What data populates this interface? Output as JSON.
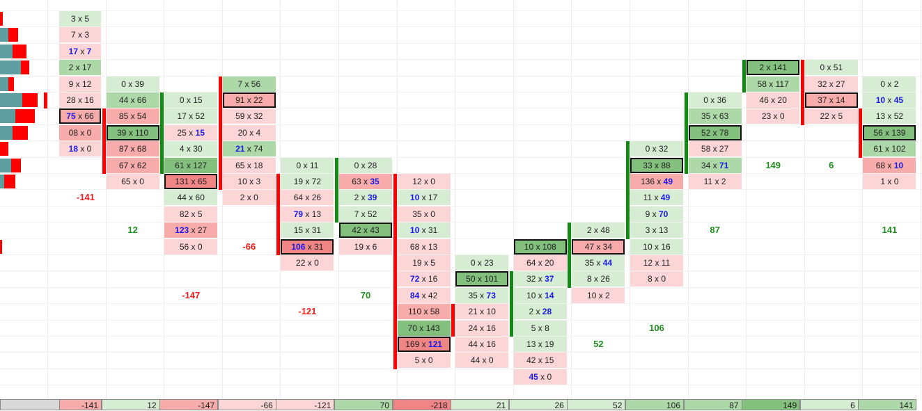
{
  "sep": " x ",
  "columns": [
    {
      "bar": {
        "color": "red",
        "from": 5,
        "to": 5
      },
      "delta": {
        "row": 11,
        "value": -141
      },
      "cells": [
        {
          "r": 0,
          "bid": 3,
          "ask": 5,
          "tone": "g1"
        },
        {
          "r": 1,
          "bid": 7,
          "ask": 3,
          "tone": "r1"
        },
        {
          "r": 2,
          "bid": 17,
          "ask": 7,
          "tone": "r1",
          "blue": "both"
        },
        {
          "r": 3,
          "bid": 2,
          "ask": 17,
          "tone": "g2"
        },
        {
          "r": 4,
          "bid": 9,
          "ask": 12,
          "tone": "r1"
        },
        {
          "r": 5,
          "bid": 28,
          "ask": 16,
          "tone": "r1"
        },
        {
          "r": 6,
          "bid": 75,
          "ask": 66,
          "tone": "r2",
          "blue": "bid",
          "box": true
        },
        {
          "r": 7,
          "bid": "08",
          "ask": 0,
          "tone": "r2"
        },
        {
          "r": 8,
          "bid": 18,
          "ask": 0,
          "tone": "r1",
          "blue": "bid"
        }
      ]
    },
    {
      "bar": {
        "color": "red",
        "from": 6,
        "to": 9
      },
      "delta": {
        "row": 13,
        "value": 12
      },
      "cells": [
        {
          "r": 4,
          "bid": 0,
          "ask": 39,
          "tone": "g1"
        },
        {
          "r": 5,
          "bid": 44,
          "ask": 66,
          "tone": "g2"
        },
        {
          "r": 6,
          "bid": 85,
          "ask": 54,
          "tone": "r2"
        },
        {
          "r": 7,
          "bid": 39,
          "ask": 110,
          "tone": "g3",
          "box": true
        },
        {
          "r": 8,
          "bid": 87,
          "ask": 68,
          "tone": "r2"
        },
        {
          "r": 9,
          "bid": 67,
          "ask": 62,
          "tone": "r2"
        },
        {
          "r": 10,
          "bid": 65,
          "ask": 0,
          "tone": "r1"
        }
      ]
    },
    {
      "bar": {
        "color": "green",
        "from": 5,
        "to": 9
      },
      "delta": {
        "row": 17,
        "value": -147
      },
      "cells": [
        {
          "r": 5,
          "bid": 0,
          "ask": 15,
          "tone": "g1"
        },
        {
          "r": 6,
          "bid": 17,
          "ask": 52,
          "tone": "g1"
        },
        {
          "r": 7,
          "bid": 25,
          "ask": 15,
          "tone": "r1",
          "blue": "ask"
        },
        {
          "r": 8,
          "bid": 4,
          "ask": 30,
          "tone": "g1"
        },
        {
          "r": 9,
          "bid": 61,
          "ask": 127,
          "tone": "g3"
        },
        {
          "r": 10,
          "bid": 131,
          "ask": 65,
          "tone": "r3",
          "box": true
        },
        {
          "r": 11,
          "bid": 44,
          "ask": 60,
          "tone": "g1"
        },
        {
          "r": 12,
          "bid": 82,
          "ask": 5,
          "tone": "r1"
        },
        {
          "r": 13,
          "bid": 123,
          "ask": 27,
          "tone": "r2",
          "blue": "bid"
        },
        {
          "r": 14,
          "bid": 56,
          "ask": 0,
          "tone": "r1"
        }
      ]
    },
    {
      "bar": {
        "color": "red",
        "from": 4,
        "to": 10
      },
      "delta": {
        "row": 14,
        "value": -66
      },
      "cells": [
        {
          "r": 4,
          "bid": 7,
          "ask": 56,
          "tone": "g2"
        },
        {
          "r": 5,
          "bid": 91,
          "ask": 22,
          "tone": "r2",
          "box": true
        },
        {
          "r": 6,
          "bid": 59,
          "ask": 32,
          "tone": "r1"
        },
        {
          "r": 7,
          "bid": 20,
          "ask": 4,
          "tone": "r1"
        },
        {
          "r": 8,
          "bid": 21,
          "ask": 74,
          "tone": "g2",
          "blue": "bid"
        },
        {
          "r": 9,
          "bid": 65,
          "ask": 18,
          "tone": "r1"
        },
        {
          "r": 10,
          "bid": 10,
          "ask": 3,
          "tone": "r1"
        },
        {
          "r": 11,
          "bid": 2,
          "ask": 0,
          "tone": "r1"
        }
      ]
    },
    {
      "bar": {
        "color": "red",
        "from": 10,
        "to": 14
      },
      "delta": {
        "row": 18,
        "value": -121
      },
      "cells": [
        {
          "r": 9,
          "bid": 0,
          "ask": 11,
          "tone": "g1"
        },
        {
          "r": 10,
          "bid": 19,
          "ask": 72,
          "tone": "g1"
        },
        {
          "r": 11,
          "bid": 64,
          "ask": 26,
          "tone": "r1"
        },
        {
          "r": 12,
          "bid": 79,
          "ask": 13,
          "tone": "r1",
          "blue": "bid"
        },
        {
          "r": 13,
          "bid": 15,
          "ask": 31,
          "tone": "g1"
        },
        {
          "r": 14,
          "bid": 106,
          "ask": 31,
          "tone": "r3",
          "blue": "bid",
          "box": true
        },
        {
          "r": 15,
          "bid": 22,
          "ask": 0,
          "tone": "r1"
        }
      ]
    },
    {
      "bar": {
        "color": "green",
        "from": 9,
        "to": 12
      },
      "delta": {
        "row": 17,
        "value": 70
      },
      "cells": [
        {
          "r": 9,
          "bid": 0,
          "ask": 28,
          "tone": "g1"
        },
        {
          "r": 10,
          "bid": 63,
          "ask": 35,
          "tone": "r2",
          "blue": "ask"
        },
        {
          "r": 11,
          "bid": 2,
          "ask": 39,
          "tone": "g1",
          "blue": "ask"
        },
        {
          "r": 12,
          "bid": 7,
          "ask": 52,
          "tone": "g1"
        },
        {
          "r": 13,
          "bid": 42,
          "ask": 43,
          "tone": "g3",
          "box": true
        },
        {
          "r": 14,
          "bid": 19,
          "ask": 6,
          "tone": "r1"
        }
      ]
    },
    {
      "bar": {
        "color": "red",
        "from": 10,
        "to": 21
      },
      "cells": [
        {
          "r": 10,
          "bid": 12,
          "ask": 0,
          "tone": "r1"
        },
        {
          "r": 11,
          "bid": 10,
          "ask": 17,
          "tone": "g1",
          "blue": "bid"
        },
        {
          "r": 12,
          "bid": 35,
          "ask": 0,
          "tone": "r1"
        },
        {
          "r": 13,
          "bid": 10,
          "ask": 31,
          "tone": "g1",
          "blue": "bid"
        },
        {
          "r": 14,
          "bid": 68,
          "ask": 13,
          "tone": "r1"
        },
        {
          "r": 15,
          "bid": 19,
          "ask": 5,
          "tone": "r1"
        },
        {
          "r": 16,
          "bid": 72,
          "ask": 16,
          "tone": "r1",
          "blue": "bid"
        },
        {
          "r": 17,
          "bid": 84,
          "ask": 42,
          "tone": "r1",
          "blue": "bid"
        },
        {
          "r": 18,
          "bid": 110,
          "ask": 58,
          "tone": "r2"
        },
        {
          "r": 19,
          "bid": 70,
          "ask": 143,
          "tone": "g3"
        },
        {
          "r": 20,
          "bid": 169,
          "ask": 121,
          "tone": "r3",
          "blue": "ask",
          "box": true
        },
        {
          "r": 21,
          "bid": 5,
          "ask": 0,
          "tone": "r1"
        }
      ]
    },
    {
      "bar": {
        "color": "red",
        "from": 18,
        "to": 19
      },
      "cells": [
        {
          "r": 15,
          "bid": 0,
          "ask": 23,
          "tone": "g1"
        },
        {
          "r": 16,
          "bid": 50,
          "ask": 101,
          "tone": "g3",
          "box": true
        },
        {
          "r": 17,
          "bid": 35,
          "ask": 73,
          "tone": "g1",
          "blue": "ask"
        },
        {
          "r": 18,
          "bid": 21,
          "ask": 10,
          "tone": "r1"
        },
        {
          "r": 19,
          "bid": 24,
          "ask": 16,
          "tone": "r1"
        },
        {
          "r": 20,
          "bid": 44,
          "ask": 16,
          "tone": "r1"
        },
        {
          "r": 21,
          "bid": 44,
          "ask": 0,
          "tone": "r1"
        }
      ]
    },
    {
      "bar": {
        "color": "green",
        "from": 16,
        "to": 19
      },
      "cells": [
        {
          "r": 14,
          "bid": 10,
          "ask": 108,
          "tone": "g3",
          "box": true
        },
        {
          "r": 15,
          "bid": 64,
          "ask": 20,
          "tone": "r1"
        },
        {
          "r": 16,
          "bid": 32,
          "ask": 37,
          "tone": "g1",
          "blue": "ask"
        },
        {
          "r": 17,
          "bid": 10,
          "ask": 14,
          "tone": "g1",
          "blue": "ask"
        },
        {
          "r": 18,
          "bid": 2,
          "ask": 28,
          "tone": "g1",
          "blue": "ask"
        },
        {
          "r": 19,
          "bid": 5,
          "ask": 8,
          "tone": "g1"
        },
        {
          "r": 20,
          "bid": 13,
          "ask": 19,
          "tone": "g1"
        },
        {
          "r": 21,
          "bid": 42,
          "ask": 15,
          "tone": "r1"
        },
        {
          "r": 22,
          "bid": 45,
          "ask": 0,
          "tone": "r1",
          "blue": "bid"
        }
      ]
    },
    {
      "bar": {
        "color": "green",
        "from": 13,
        "to": 16
      },
      "delta": {
        "row": 20,
        "value": 52
      },
      "cells": [
        {
          "r": 13,
          "bid": 2,
          "ask": 48,
          "tone": "g1"
        },
        {
          "r": 14,
          "bid": 47,
          "ask": 34,
          "tone": "r2",
          "box": true
        },
        {
          "r": 15,
          "bid": 35,
          "ask": 44,
          "tone": "g1",
          "blue": "ask"
        },
        {
          "r": 16,
          "bid": 8,
          "ask": 26,
          "tone": "g1"
        },
        {
          "r": 17,
          "bid": 10,
          "ask": 2,
          "tone": "r1"
        }
      ]
    },
    {
      "bar": {
        "color": "green",
        "from": 8,
        "to": 13
      },
      "delta": {
        "row": 19,
        "value": 106
      },
      "cells": [
        {
          "r": 8,
          "bid": 0,
          "ask": 32,
          "tone": "g1"
        },
        {
          "r": 9,
          "bid": 33,
          "ask": 88,
          "tone": "g3",
          "box": true
        },
        {
          "r": 10,
          "bid": 136,
          "ask": 49,
          "tone": "r2",
          "blue": "ask"
        },
        {
          "r": 11,
          "bid": 11,
          "ask": 49,
          "tone": "g1",
          "blue": "ask"
        },
        {
          "r": 12,
          "bid": 9,
          "ask": 70,
          "tone": "g1",
          "blue": "ask"
        },
        {
          "r": 13,
          "bid": 3,
          "ask": 13,
          "tone": "g1"
        },
        {
          "r": 14,
          "bid": 10,
          "ask": 16,
          "tone": "g1"
        },
        {
          "r": 15,
          "bid": 12,
          "ask": 11,
          "tone": "r1"
        },
        {
          "r": 16,
          "bid": 8,
          "ask": 0,
          "tone": "r1"
        }
      ]
    },
    {
      "bar": {
        "color": "green",
        "from": 5,
        "to": 9
      },
      "delta": {
        "row": 13,
        "value": 87
      },
      "cells": [
        {
          "r": 5,
          "bid": 0,
          "ask": 36,
          "tone": "g1"
        },
        {
          "r": 6,
          "bid": 35,
          "ask": 63,
          "tone": "g2"
        },
        {
          "r": 7,
          "bid": 52,
          "ask": 78,
          "tone": "g3",
          "box": true
        },
        {
          "r": 8,
          "bid": 58,
          "ask": 27,
          "tone": "r1"
        },
        {
          "r": 9,
          "bid": 34,
          "ask": 71,
          "tone": "g2",
          "blue": "ask"
        },
        {
          "r": 10,
          "bid": 11,
          "ask": 2,
          "tone": "r1"
        }
      ]
    },
    {
      "bar": {
        "color": "green",
        "from": 3,
        "to": 4
      },
      "delta": {
        "row": 9,
        "value": 149
      },
      "cells": [
        {
          "r": 3,
          "bid": 2,
          "ask": 141,
          "tone": "g3",
          "box": true
        },
        {
          "r": 4,
          "bid": 58,
          "ask": 117,
          "tone": "g2"
        },
        {
          "r": 5,
          "bid": 46,
          "ask": 20,
          "tone": "r1"
        },
        {
          "r": 6,
          "bid": 23,
          "ask": 0,
          "tone": "r1"
        }
      ]
    },
    {
      "bar": {
        "color": "red",
        "from": 3,
        "to": 6
      },
      "delta": {
        "row": 9,
        "value": 6
      },
      "cells": [
        {
          "r": 3,
          "bid": 0,
          "ask": 51,
          "tone": "g1"
        },
        {
          "r": 4,
          "bid": 32,
          "ask": 27,
          "tone": "r1"
        },
        {
          "r": 5,
          "bid": 37,
          "ask": 14,
          "tone": "r2",
          "box": true
        },
        {
          "r": 6,
          "bid": 22,
          "ask": 5,
          "tone": "r1"
        }
      ]
    },
    {
      "bar": {
        "color": "red",
        "from": 6,
        "to": 8
      },
      "delta": {
        "row": 13,
        "value": 141
      },
      "cells": [
        {
          "r": 4,
          "bid": 0,
          "ask": 2,
          "tone": "g1"
        },
        {
          "r": 5,
          "bid": 10,
          "ask": 45,
          "tone": "g1",
          "blue": "both"
        },
        {
          "r": 6,
          "bid": 13,
          "ask": 52,
          "tone": "g1"
        },
        {
          "r": 7,
          "bid": 56,
          "ask": 139,
          "tone": "g3",
          "box": true
        },
        {
          "r": 8,
          "bid": 61,
          "ask": 102,
          "tone": "g2"
        },
        {
          "r": 9,
          "bid": 68,
          "ask": 10,
          "tone": "r2",
          "blue": "ask"
        },
        {
          "r": 10,
          "bid": 1,
          "ask": 0,
          "tone": "r1"
        }
      ]
    }
  ],
  "footer": [
    {
      "value": -141,
      "tone": "r2"
    },
    {
      "value": 12,
      "tone": "g1"
    },
    {
      "value": -147,
      "tone": "r2"
    },
    {
      "value": -66,
      "tone": "r1"
    },
    {
      "value": -121,
      "tone": "r1"
    },
    {
      "value": 70,
      "tone": "g2"
    },
    {
      "value": -218,
      "tone": "r3"
    },
    {
      "value": 21,
      "tone": "g1"
    },
    {
      "value": 26,
      "tone": "g1"
    },
    {
      "value": 52,
      "tone": "g1"
    },
    {
      "value": 106,
      "tone": "g2"
    },
    {
      "value": 87,
      "tone": "g2"
    },
    {
      "value": 149,
      "tone": "g3"
    },
    {
      "value": 6,
      "tone": "g1"
    },
    {
      "value": 141,
      "tone": "g2"
    }
  ]
}
